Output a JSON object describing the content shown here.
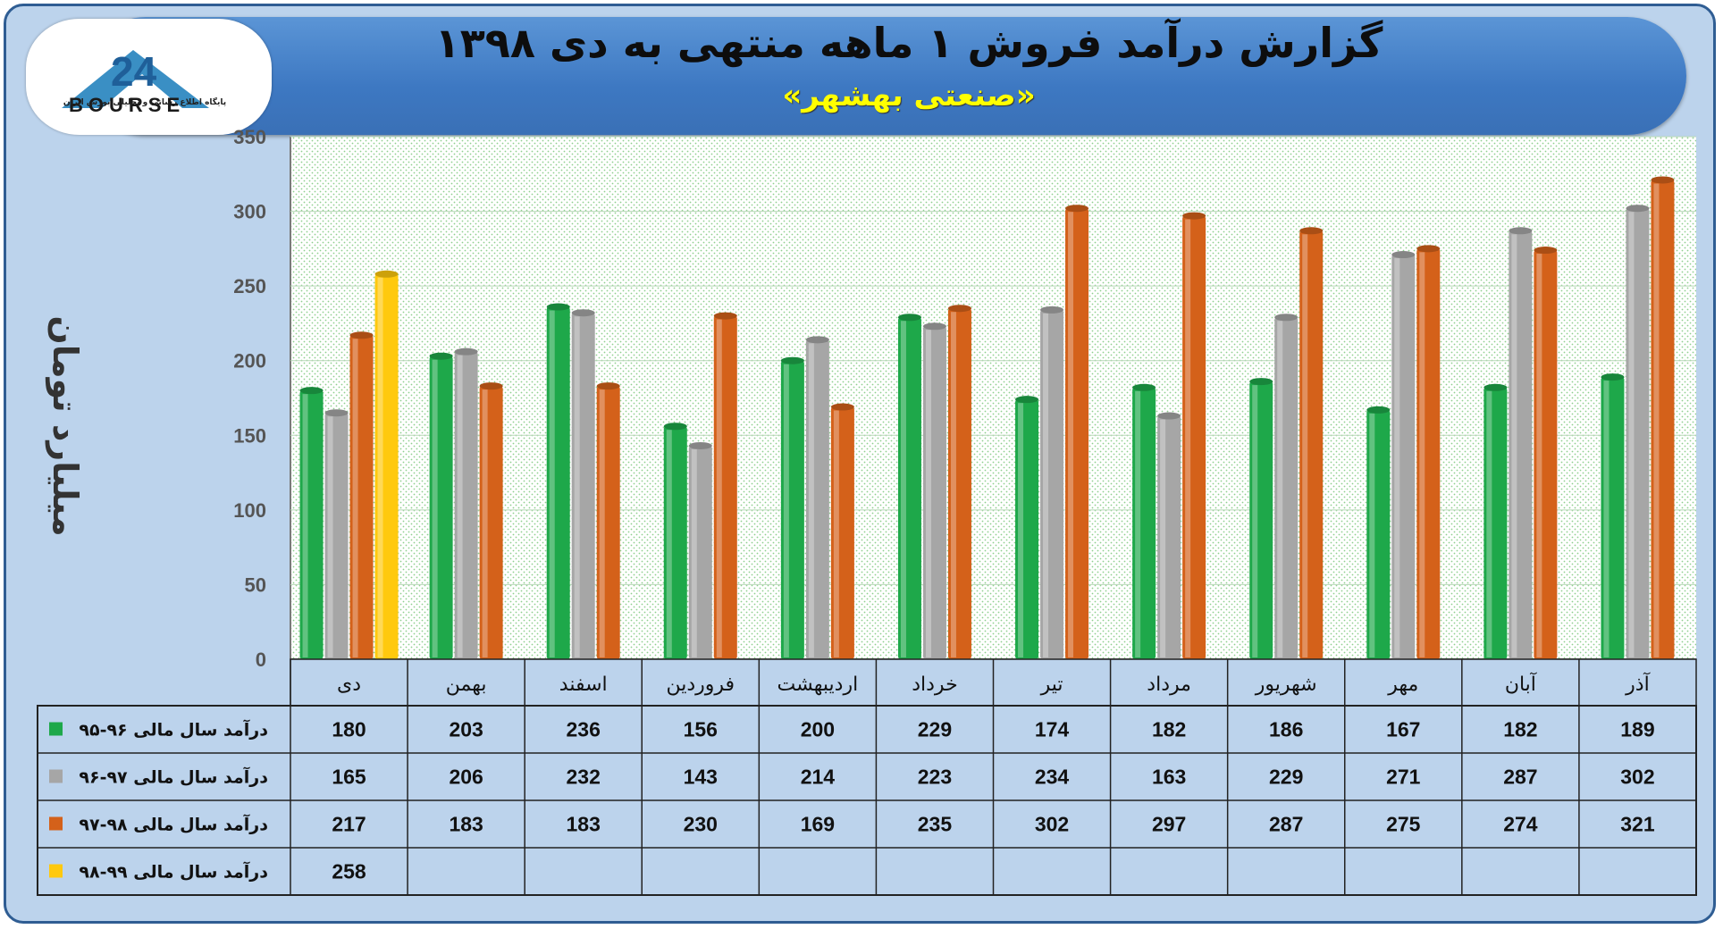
{
  "header": {
    "title": "گزارش درآمد فروش ۱ ماهه منتهی به دی ۱۳۹۸",
    "subtitle": "«صنعتی بهشهر»"
  },
  "logo": {
    "text": "BOURSE",
    "caption": "پایگاه اطلاع رسانی و تحلیلی بورس ایران"
  },
  "colors": {
    "s1": "#1ea84a",
    "s2": "#a6a6a6",
    "s3": "#d4611a",
    "s4": "#ffc90e"
  },
  "chart_data": {
    "type": "bar",
    "title": "گزارش درآمد فروش ۱ ماهه منتهی به دی ۱۳۹۸",
    "subtitle": "«صنعتی بهشهر»",
    "ylabel": "میلیارد تومان",
    "ylim": [
      0,
      350
    ],
    "yticks": [
      0,
      50,
      100,
      150,
      200,
      250,
      300,
      350
    ],
    "grid": true,
    "categories": [
      "دی",
      "بهمن",
      "اسفند",
      "فروردین",
      "اردیبهشت",
      "خرداد",
      "تیر",
      "مرداد",
      "شهریور",
      "مهر",
      "آبان",
      "آذر"
    ],
    "series": [
      {
        "name": "درآمد سال مالی ۹۶-۹۵",
        "color": "#1ea84a",
        "values": [
          180,
          203,
          236,
          156,
          200,
          229,
          174,
          182,
          186,
          167,
          182,
          189
        ]
      },
      {
        "name": "درآمد سال مالی ۹۷-۹۶",
        "color": "#a6a6a6",
        "values": [
          165,
          206,
          232,
          143,
          214,
          223,
          234,
          163,
          229,
          271,
          287,
          302
        ]
      },
      {
        "name": "درآمد سال مالی ۹۸-۹۷",
        "color": "#d4611a",
        "values": [
          217,
          183,
          183,
          230,
          169,
          235,
          302,
          297,
          287,
          275,
          274,
          321
        ]
      },
      {
        "name": "درآمد سال مالی ۹۹-۹۸",
        "color": "#ffc90e",
        "values": [
          258,
          null,
          null,
          null,
          null,
          null,
          null,
          null,
          null,
          null,
          null,
          null
        ]
      }
    ]
  }
}
